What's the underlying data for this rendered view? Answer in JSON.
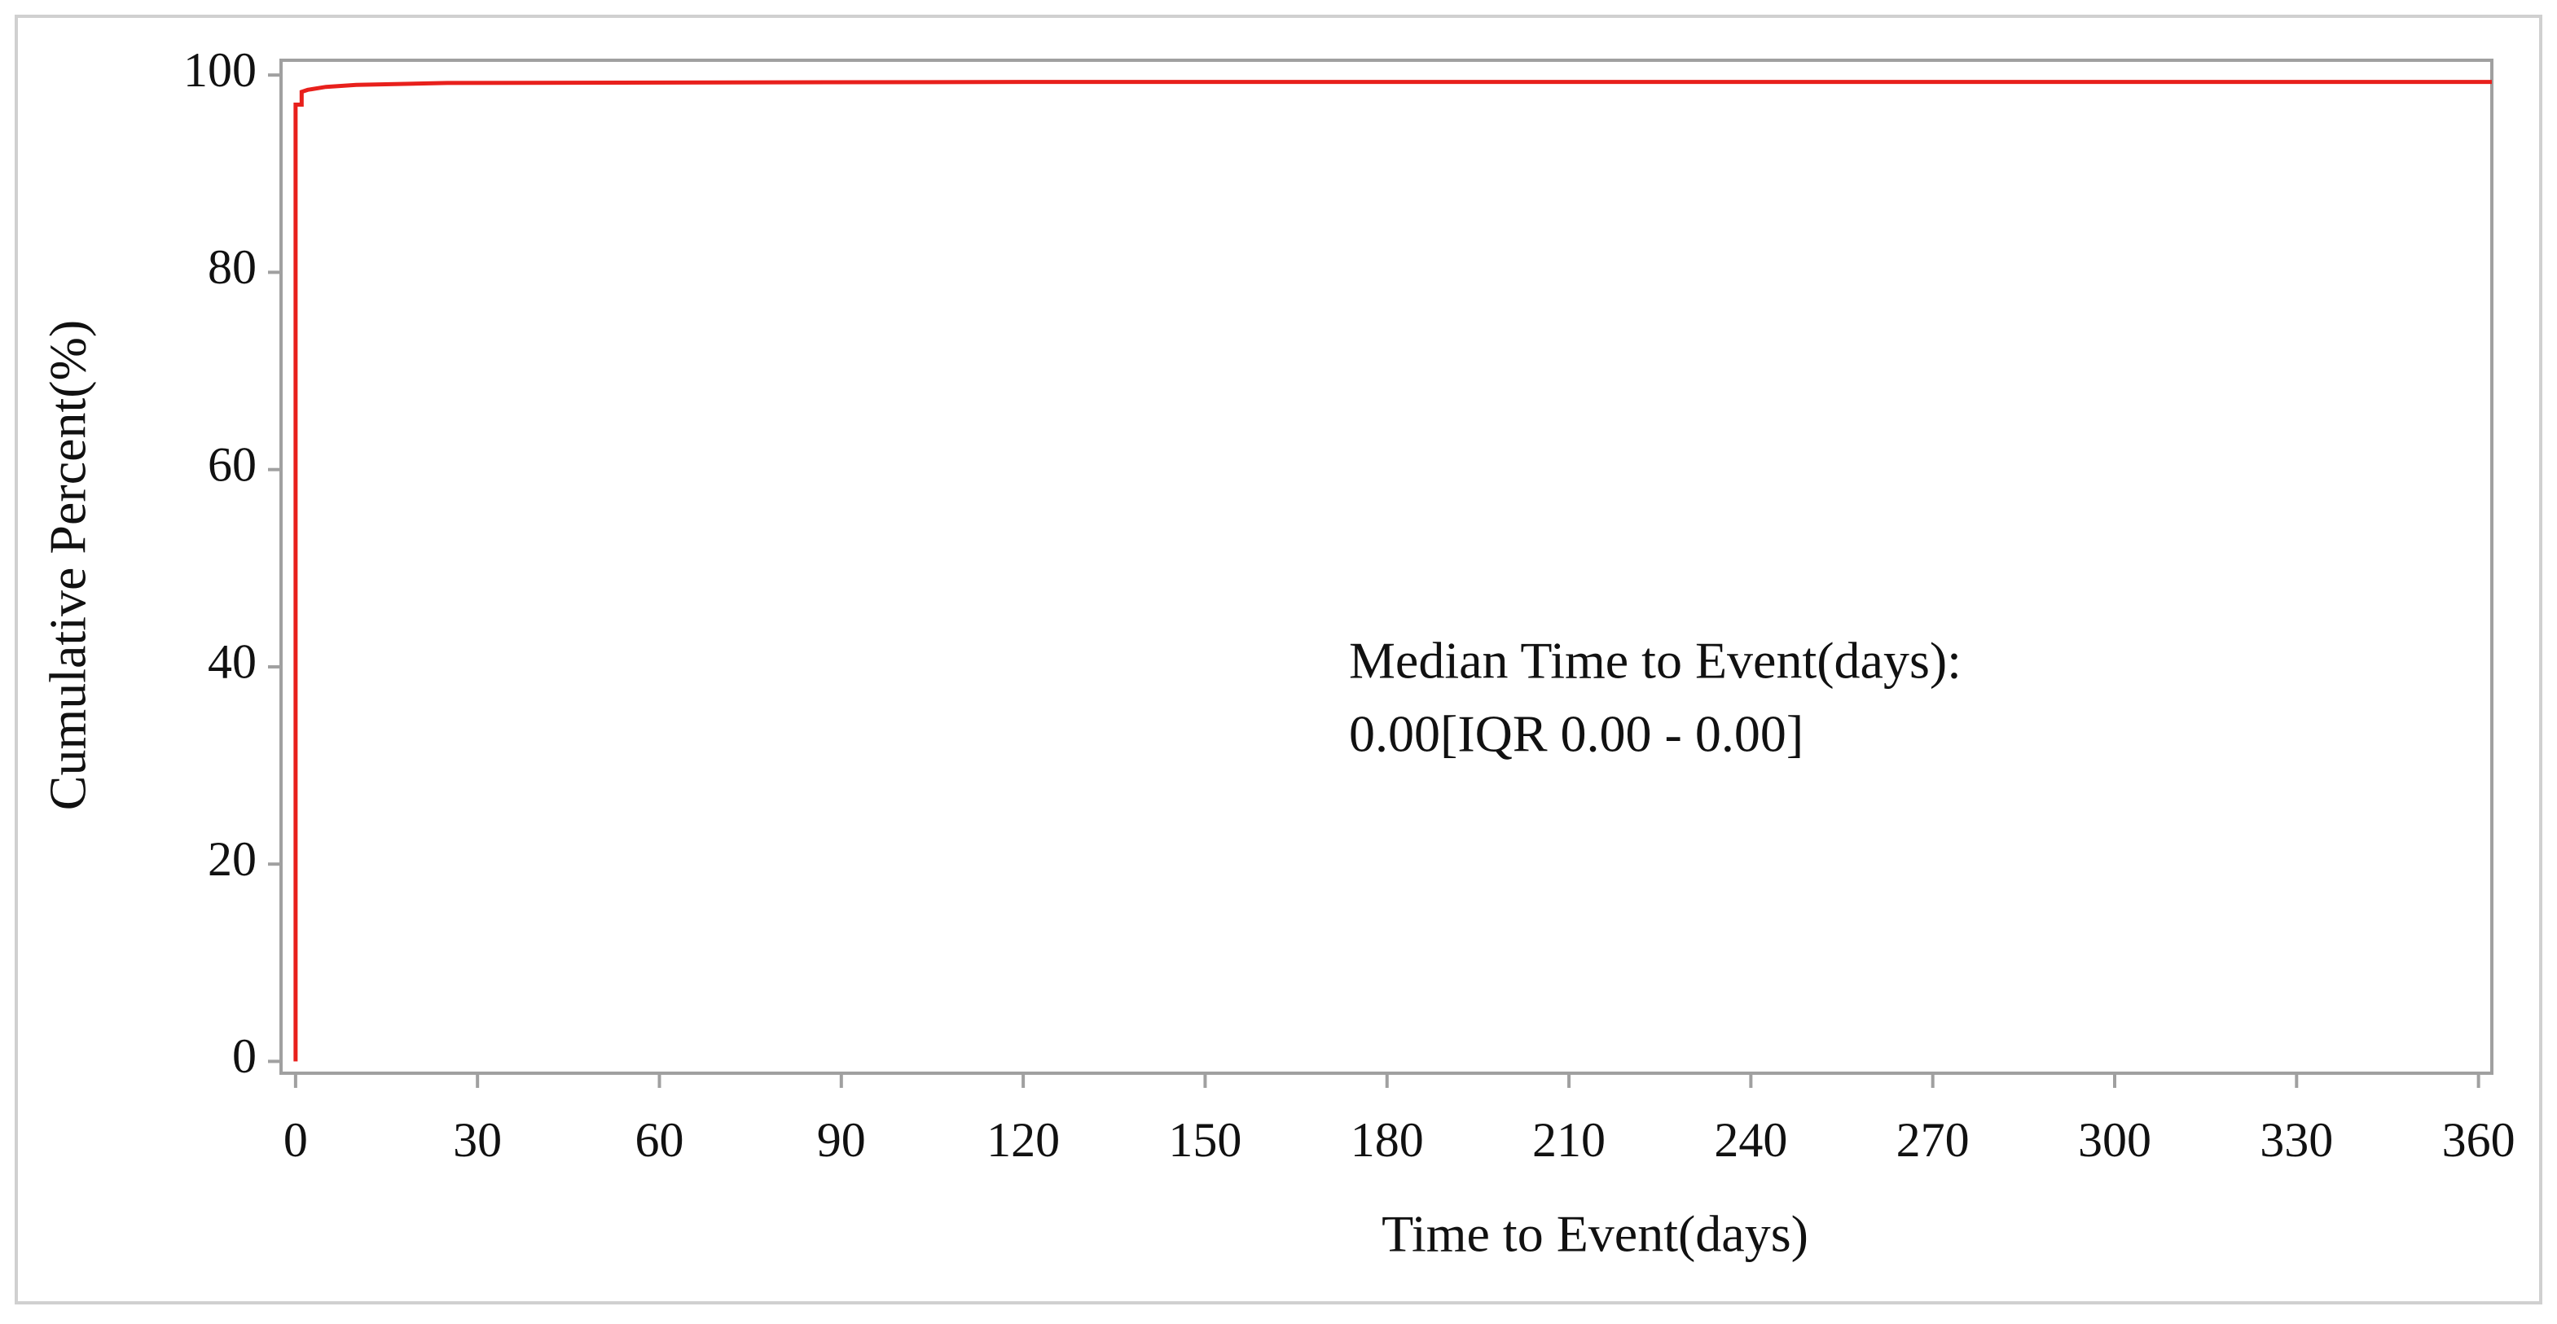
{
  "chart_data": {
    "type": "line",
    "x_label": "Time to Event(days)",
    "y_label": "Cumulative Percent(%)",
    "annotations": [
      "Median Time to Event(days):",
      "0.00[IQR 0.00 - 0.00]"
    ],
    "x": [
      0,
      0,
      1,
      1,
      2,
      5,
      10,
      25,
      120,
      362.2
    ],
    "series": [
      {
        "color": "#e8201c",
        "values": [
          0,
          97,
          97,
          98.3,
          98.5,
          98.8,
          99,
          99.2,
          99.3,
          99.3
        ]
      }
    ],
    "xlim": [
      -2.4,
      362.2
    ],
    "xticks": [
      0,
      30,
      60,
      90,
      120,
      150,
      180,
      210,
      240,
      270,
      300,
      330,
      360
    ],
    "ylim": [
      -1.2,
      101.5
    ],
    "yticks": [
      0,
      20,
      40,
      60,
      80,
      100
    ],
    "grid": false
  }
}
